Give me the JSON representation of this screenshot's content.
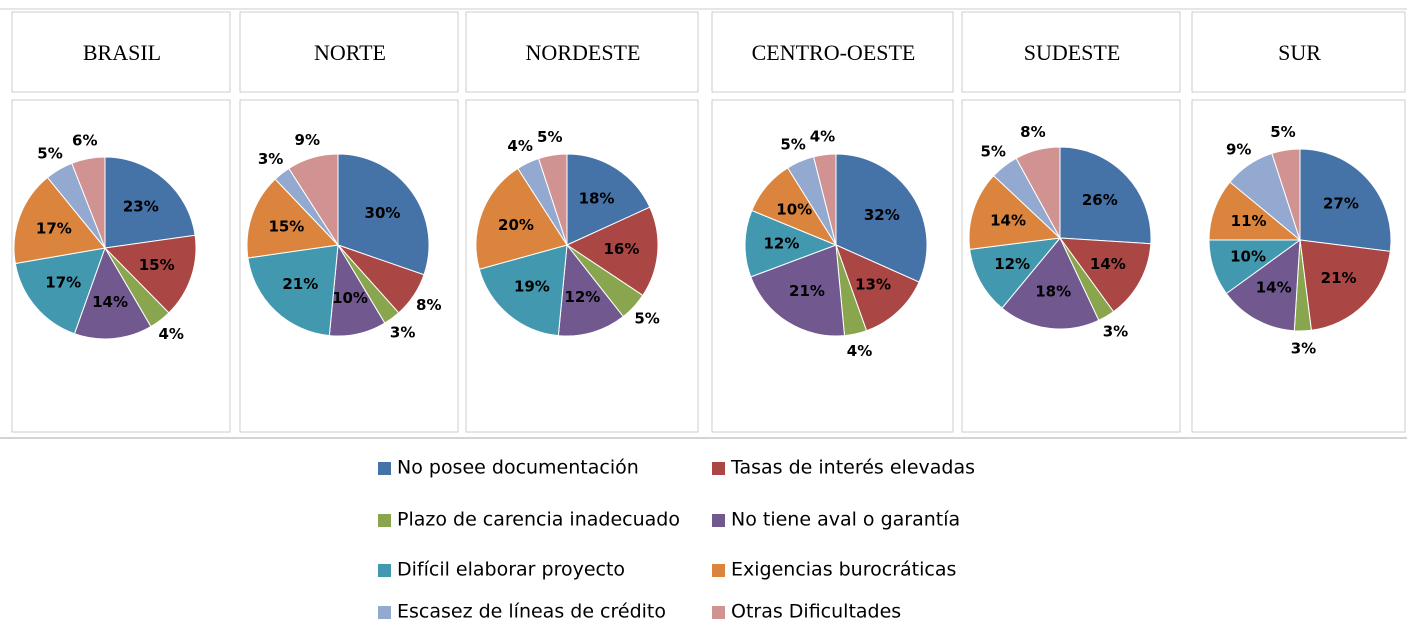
{
  "legend": {
    "categories": [
      "No posee documentación",
      "Tasas de interés elevadas",
      "Plazo de carencia inadecuado",
      "No tiene aval o garantía",
      "Difícil elaborar proyecto",
      "Exigencias burocráticas",
      "Escasez de líneas de crédito",
      "Otras Dificultades"
    ],
    "colors": [
      "#4572a7",
      "#aa4643",
      "#89a54e",
      "#71588f",
      "#4198af",
      "#db843d",
      "#93a9cf",
      "#d19392"
    ]
  },
  "chart_data": [
    {
      "type": "pie",
      "title": "BRASIL",
      "values": [
        23,
        15,
        4,
        14,
        17,
        17,
        5,
        6
      ],
      "value_labels": [
        "23%",
        "15%",
        "4%",
        "14%",
        "17%",
        "17%",
        "5%",
        "6%"
      ]
    },
    {
      "type": "pie",
      "title": "NORTE",
      "values": [
        30,
        8,
        3,
        10,
        21,
        15,
        3,
        9
      ],
      "value_labels": [
        "30%",
        "8%",
        "3%",
        "10%",
        "21%",
        "15%",
        "3%",
        "9%"
      ]
    },
    {
      "type": "pie",
      "title": "NORDESTE",
      "values": [
        18,
        16,
        5,
        12,
        19,
        20,
        4,
        5
      ],
      "value_labels": [
        "18%",
        "16%",
        "5%",
        "12%",
        "19%",
        "20%",
        "4%",
        "5%"
      ]
    },
    {
      "type": "pie",
      "title": "CENTRO-OESTE",
      "values": [
        32,
        13,
        4,
        21,
        12,
        10,
        5,
        4
      ],
      "value_labels": [
        "32%",
        "13%",
        "4%",
        "21%",
        "12%",
        "10%",
        "5%",
        "4%"
      ]
    },
    {
      "type": "pie",
      "title": "SUDESTE",
      "values": [
        26,
        14,
        3,
        18,
        12,
        14,
        5,
        8
      ],
      "value_labels": [
        "26%",
        "14%",
        "3%",
        "18%",
        "12%",
        "14%",
        "5%",
        "8%"
      ]
    },
    {
      "type": "pie",
      "title": "SUR",
      "values": [
        27,
        21,
        3,
        14,
        10,
        11,
        9,
        5
      ],
      "value_labels": [
        "27%",
        "21%",
        "3%",
        "14%",
        "10%",
        "11%",
        "9%",
        "5%"
      ]
    }
  ]
}
